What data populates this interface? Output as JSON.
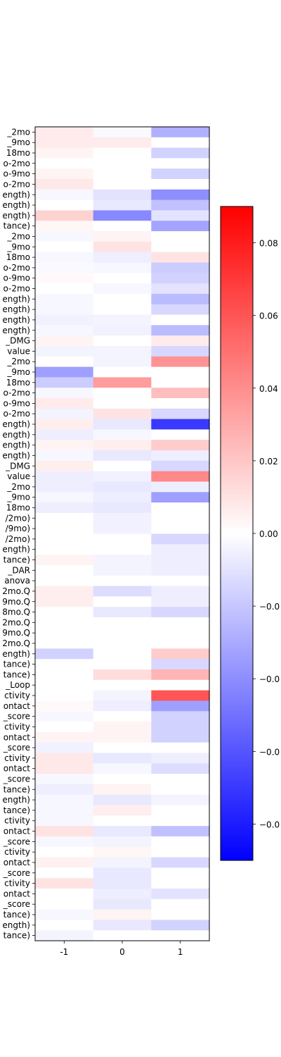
{
  "chart_data": {
    "type": "heatmap",
    "title": "",
    "xlabel": "",
    "ylabel": "",
    "x_categories": [
      "-1",
      "0",
      "1"
    ],
    "row_labels": [
      "_2mo",
      "_9mo",
      "18mo",
      "o-2mo",
      "o-9mo",
      "o-2mo",
      "ength)",
      "ength)",
      "ength)",
      "tance)",
      "_2mo",
      "_9mo",
      "18mo",
      "o-2mo",
      "o-9mo",
      "o-2mo",
      "ength)",
      "ength)",
      "ength)",
      "ength)",
      "_DMG",
      "value",
      "_2mo",
      "_9mo",
      "18mo",
      "o-2mo",
      "o-9mo",
      "o-2mo",
      "ength)",
      "ength)",
      "ength)",
      "ength)",
      "_DMG",
      "value",
      "_2mo",
      "_9mo",
      "18mo",
      "/2mo)",
      "/9mo)",
      "/2mo)",
      "ength)",
      "tance)",
      "_DAR",
      "anova",
      "2mo.Q",
      "9mo.Q",
      "8mo.Q",
      "2mo.Q",
      "9mo.Q",
      "2mo.Q",
      "ength)",
      "tance)",
      "tance)",
      "_Loop",
      "ctivity",
      "ontact",
      "_score",
      "ctivity",
      "ontact",
      "_score",
      "ctivity",
      "ontact",
      "_score",
      "tance)",
      "ength)",
      "tance)",
      "ctivity",
      "ontact",
      "_score",
      "ctivity",
      "ontact",
      "_score",
      "ctivity",
      "ontact",
      "_score",
      "tance)",
      "ength)",
      "tance)"
    ],
    "values": [
      [
        0.007,
        -0.002,
        -0.028
      ],
      [
        0.007,
        0.007,
        0.0
      ],
      [
        0.004,
        0.0,
        -0.016
      ],
      [
        0.0,
        0.0,
        0.0
      ],
      [
        0.004,
        0.0,
        -0.016
      ],
      [
        0.008,
        0.0,
        0.0
      ],
      [
        -0.003,
        -0.01,
        -0.04
      ],
      [
        0.0,
        -0.008,
        -0.022
      ],
      [
        0.016,
        -0.042,
        -0.01
      ],
      [
        0.003,
        0.0,
        -0.032
      ],
      [
        -0.003,
        0.004,
        0.0
      ],
      [
        0.0,
        0.01,
        0.0
      ],
      [
        -0.003,
        -0.006,
        0.01
      ],
      [
        -0.002,
        -0.003,
        -0.018
      ],
      [
        0.002,
        0.0,
        -0.016
      ],
      [
        0.0,
        -0.003,
        -0.01
      ],
      [
        -0.003,
        0.0,
        -0.024
      ],
      [
        -0.003,
        0.0,
        -0.014
      ],
      [
        -0.005,
        -0.004,
        0.0
      ],
      [
        -0.003,
        -0.005,
        -0.024
      ],
      [
        0.004,
        0.0,
        0.007
      ],
      [
        -0.004,
        -0.004,
        -0.014
      ],
      [
        0.0,
        -0.004,
        0.038
      ],
      [
        -0.034,
        0.0,
        0.0
      ],
      [
        -0.018,
        0.035,
        0.0
      ],
      [
        -0.003,
        0.0,
        0.023
      ],
      [
        0.007,
        0.0,
        0.0
      ],
      [
        -0.004,
        0.01,
        -0.014
      ],
      [
        0.006,
        -0.008,
        -0.07
      ],
      [
        -0.006,
        -0.003,
        0.0
      ],
      [
        0.004,
        0.006,
        0.018
      ],
      [
        -0.003,
        -0.008,
        -0.006
      ],
      [
        0.006,
        0.0,
        -0.014
      ],
      [
        -0.006,
        -0.005,
        0.042
      ],
      [
        -0.006,
        -0.008,
        -0.006
      ],
      [
        -0.003,
        -0.006,
        -0.034
      ],
      [
        -0.006,
        -0.008,
        0.0
      ],
      [
        0.0,
        -0.005,
        0.0
      ],
      [
        0.0,
        -0.005,
        0.0
      ],
      [
        0.0,
        0.0,
        -0.014
      ],
      [
        0.0,
        0.0,
        -0.006
      ],
      [
        0.004,
        -0.004,
        -0.006
      ],
      [
        0.0,
        -0.004,
        -0.006
      ],
      [
        0.0,
        0.0,
        0.0
      ],
      [
        0.006,
        -0.012,
        -0.006
      ],
      [
        0.006,
        0.0,
        -0.006
      ],
      [
        0.0,
        -0.008,
        -0.014
      ],
      [
        0.0,
        0.0,
        0.0
      ],
      [
        0.0,
        0.0,
        0.0
      ],
      [
        0.0,
        0.0,
        0.0
      ],
      [
        -0.016,
        0.0,
        0.018
      ],
      [
        0.0,
        0.0,
        -0.014
      ],
      [
        0.0,
        0.012,
        0.026
      ],
      [
        0.0,
        0.0,
        0.0
      ],
      [
        0.0,
        -0.004,
        0.06
      ],
      [
        0.002,
        -0.006,
        -0.034
      ],
      [
        -0.003,
        0.0,
        -0.016
      ],
      [
        0.0,
        0.004,
        -0.016
      ],
      [
        0.004,
        0.004,
        -0.016
      ],
      [
        -0.005,
        0.0,
        0.0
      ],
      [
        0.008,
        -0.008,
        -0.006
      ],
      [
        0.008,
        -0.003,
        -0.012
      ],
      [
        -0.003,
        0.0,
        0.0
      ],
      [
        -0.006,
        0.004,
        0.0
      ],
      [
        -0.003,
        -0.008,
        -0.004
      ],
      [
        -0.003,
        0.006,
        0.0
      ],
      [
        -0.003,
        0.0,
        0.0
      ],
      [
        0.01,
        -0.008,
        -0.022
      ],
      [
        -0.003,
        -0.004,
        0.0
      ],
      [
        0.0,
        0.003,
        0.0
      ],
      [
        0.005,
        -0.004,
        -0.014
      ],
      [
        0.0,
        -0.008,
        0.0
      ],
      [
        0.01,
        -0.008,
        0.0
      ],
      [
        0.0,
        -0.006,
        -0.01
      ],
      [
        0.0,
        -0.008,
        0.0
      ],
      [
        -0.003,
        0.004,
        0.0
      ],
      [
        0.0,
        -0.008,
        -0.016
      ],
      [
        -0.004,
        0.0,
        0.0
      ]
    ],
    "colormap": "bwr",
    "vmin": -0.09,
    "vmax": 0.09,
    "colorbar_ticks": [
      0.08,
      0.06,
      0.04,
      0.02,
      0.0,
      -0.02,
      -0.04,
      -0.06,
      -0.08
    ],
    "colorbar_tick_labels": [
      "0.08",
      "0.06",
      "0.04",
      "0.02",
      "0.00",
      "−0.0",
      "−0.0",
      "−0.0",
      "−0.0"
    ]
  }
}
